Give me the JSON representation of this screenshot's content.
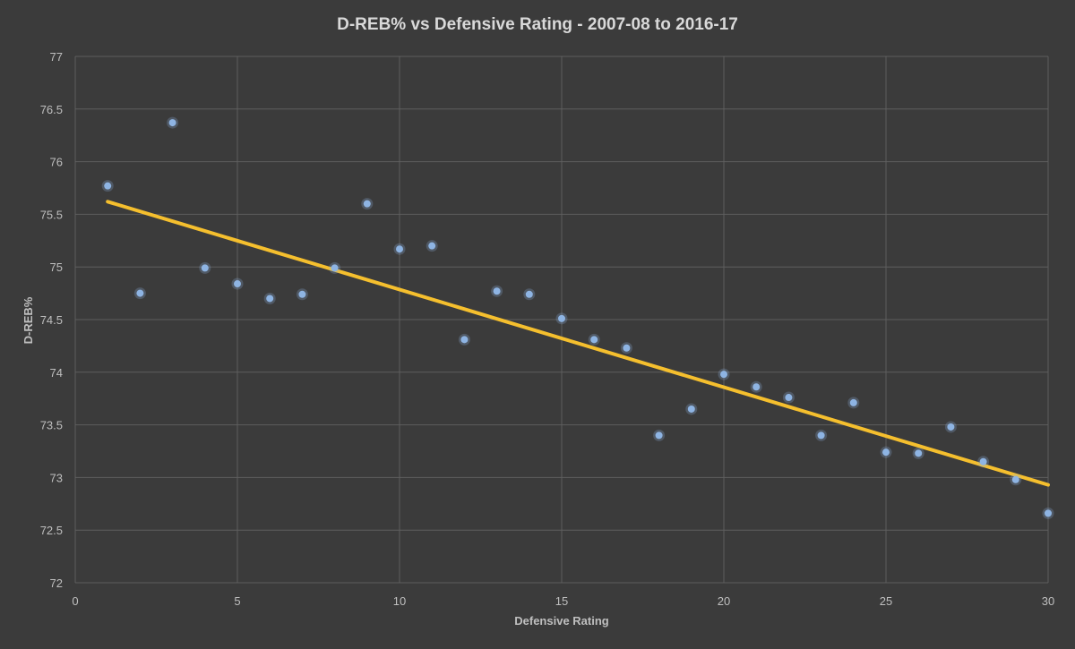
{
  "colors": {
    "background": "#3b3b3b",
    "grid": "#5e5e5e",
    "point": "#8eb4e3",
    "trendline": "#f5bf2e",
    "text": "#bfbfbf",
    "title": "#d9d9d9"
  },
  "chart_data": {
    "type": "scatter",
    "title": "D-REB% vs Defensive Rating - 2007-08 to 2016-17",
    "xlabel": "Defensive Rating",
    "ylabel": "D-REB%",
    "xlim": [
      0,
      30
    ],
    "ylim": [
      72,
      77
    ],
    "xticks": [
      0,
      5,
      10,
      15,
      20,
      25,
      30
    ],
    "yticks": [
      72,
      72.5,
      73,
      73.5,
      74,
      74.5,
      75,
      75.5,
      76,
      76.5,
      77
    ],
    "grid": true,
    "legend": "none",
    "series": [
      {
        "x": [
          1,
          2,
          3,
          4,
          5,
          6,
          7,
          8,
          9,
          10,
          11,
          12,
          13,
          14,
          15,
          16,
          17,
          18,
          19,
          20,
          21,
          22,
          23,
          24,
          25,
          26,
          27,
          28,
          29,
          30
        ],
        "y": [
          75.77,
          74.75,
          76.37,
          74.99,
          74.84,
          74.7,
          74.74,
          74.99,
          75.6,
          75.17,
          75.2,
          74.31,
          74.77,
          74.74,
          74.51,
          74.31,
          74.23,
          73.4,
          73.65,
          73.98,
          73.86,
          73.76,
          73.4,
          73.71,
          73.24,
          73.23,
          73.48,
          73.15,
          72.98,
          72.66
        ]
      }
    ],
    "trendline": {
      "type": "linear",
      "x": [
        1,
        30
      ],
      "y": [
        75.62,
        72.93
      ]
    }
  }
}
